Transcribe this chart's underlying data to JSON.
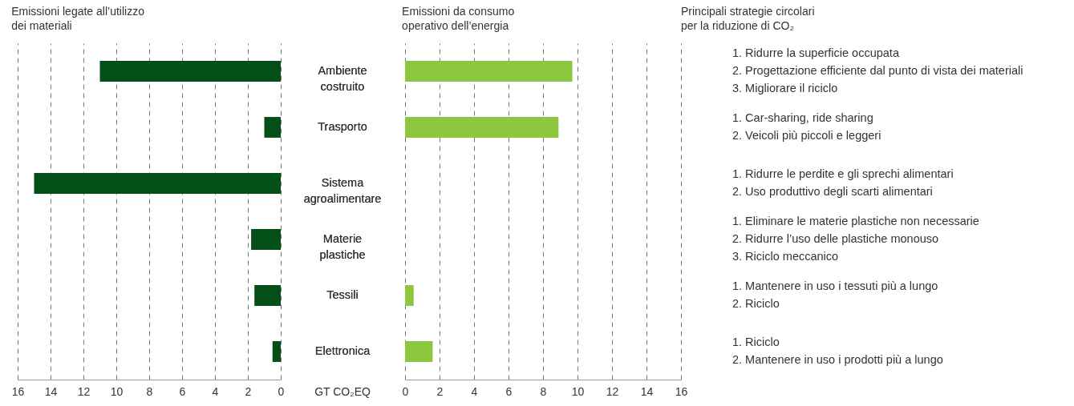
{
  "chart_data": [
    {
      "type": "bar",
      "orientation": "horizontal",
      "title": "Emissioni legate all’utilizzo\ndei materiali",
      "xlabel": "GT CO₂EQ",
      "categories": [
        "Ambiente costruito",
        "Trasporto",
        "Sistema agroalimentare",
        "Materie plastiche",
        "Tessili",
        "Elettronica"
      ],
      "values": [
        11.0,
        1.0,
        15.0,
        1.8,
        1.6,
        0.5
      ],
      "color": "#044f18",
      "xlim": [
        16,
        0
      ],
      "xticks": [
        16,
        14,
        12,
        10,
        8,
        6,
        4,
        2,
        0
      ],
      "grid": "x"
    },
    {
      "type": "bar",
      "orientation": "horizontal",
      "title": "Emissioni da consumo\noperativo dell’energia",
      "categories": [
        "Ambiente costruito",
        "Trasporto",
        "Sistema agroalimentare",
        "Materie plastiche",
        "Tessili",
        "Elettronica"
      ],
      "values": [
        9.7,
        8.9,
        null,
        null,
        0.5,
        1.6
      ],
      "color": "#8dc63f",
      "xlim": [
        0,
        16
      ],
      "xticks": [
        0,
        2,
        4,
        6,
        8,
        10,
        12,
        14,
        16
      ],
      "grid": "x",
      "tick_labels": "x"
    },
    {
      "type": "other",
      "title": "Principali strategie circolari\nper la riduzione di CO₂",
      "annotations": [
        "1. Ridurre la superficie occupata",
        "2. Progettazione efficiente dal punto di vista dei materiali",
        "3. Migliorare il riciclo",
        "1. Car-sharing, ride sharing",
        "2. Veicoli più piccoli e leggeri",
        "1. Ridurre le perdite e gli sprechi alimentari",
        "2. Uso produttivo degli scarti alimentari",
        "1. Eliminare le materie plastiche non necessarie",
        "2. Ridurre l’uso delle plastiche monouso",
        "3. Riciclo meccanico",
        "1. Mantenere in uso i tessuti più a lungo",
        "2. Riciclo",
        "1. Riciclo",
        "2. Mantenere in uso i prodotti più a lungo"
      ]
    }
  ]
}
